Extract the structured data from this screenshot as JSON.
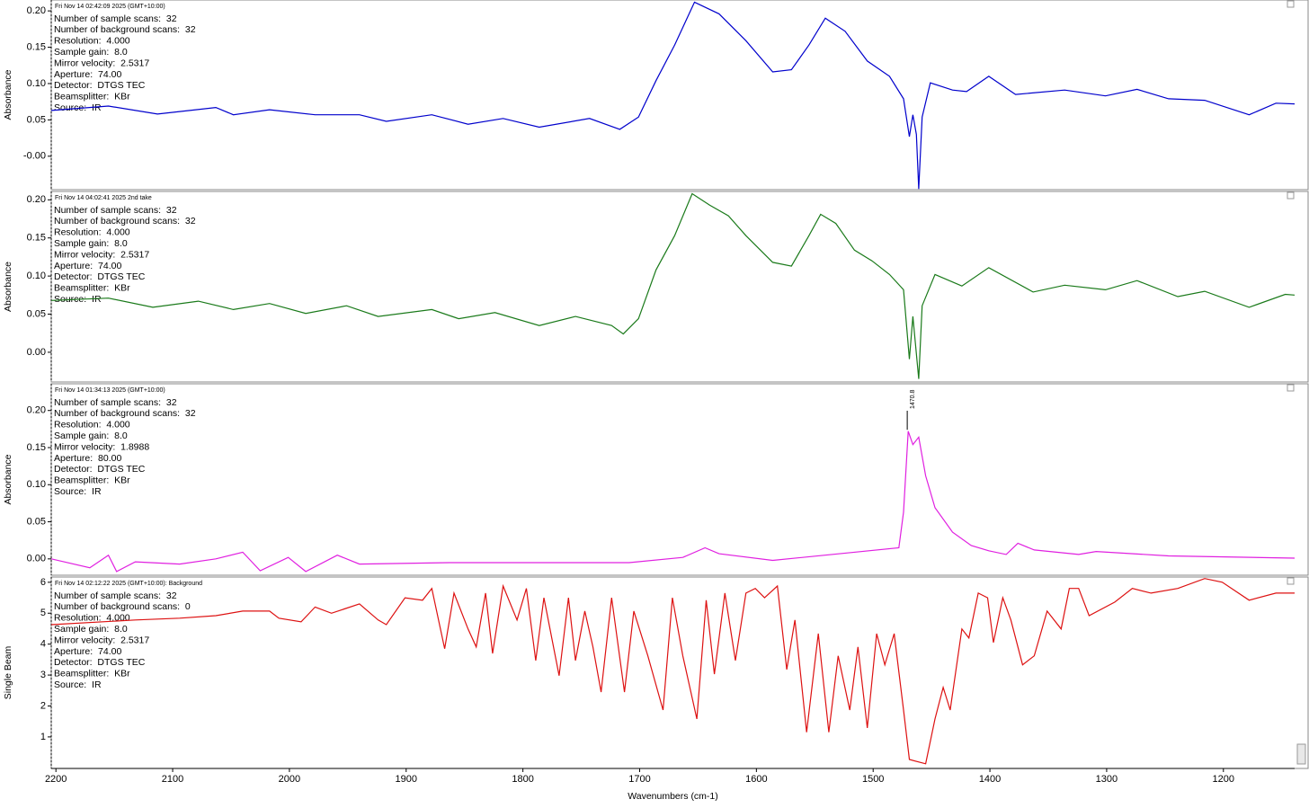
{
  "chart_data": [
    {
      "type": "line",
      "title": "Fri Nov 14 02:42:09 2025 (GMT+10:00)",
      "info": [
        "Number of sample scans:  32",
        "Number of background scans:  32",
        "Resolution:  4.000",
        "Sample gain:  8.0",
        "Mirror velocity:  2.5317",
        "Aperture:  74.00",
        "Detector:  DTGS TEC",
        "Beamsplitter:  KBr",
        "Source:  IR"
      ],
      "ylabel": "Absorbance",
      "color": "#0000cc",
      "xlim": [
        2204,
        1139
      ],
      "ylim": [
        -0.046,
        0.215
      ],
      "yticks": [
        {
          "value": 0.2,
          "label": "0.20"
        },
        0.15,
        {
          "value": 0.1,
          "label": "0.10"
        },
        0.05,
        {
          "value": 0,
          "label": "-0.00"
        }
      ],
      "x": [
        2204,
        2155,
        2113,
        2063,
        2048,
        2017,
        1978,
        1940,
        1917,
        1878,
        1847,
        1817,
        1786,
        1743,
        1717,
        1701,
        1686,
        1670,
        1653,
        1632,
        1609,
        1586,
        1570,
        1555,
        1541,
        1524,
        1505,
        1486,
        1474,
        1469,
        1466,
        1463,
        1461,
        1458,
        1451,
        1432,
        1420,
        1401,
        1378,
        1336,
        1301,
        1274,
        1247,
        1216,
        1178,
        1155,
        1139
      ],
      "values": [
        0.063,
        0.069,
        0.058,
        0.067,
        0.057,
        0.064,
        0.057,
        0.057,
        0.048,
        0.057,
        0.044,
        0.052,
        0.04,
        0.052,
        0.037,
        0.054,
        0.104,
        0.153,
        0.212,
        0.196,
        0.159,
        0.116,
        0.119,
        0.153,
        0.19,
        0.172,
        0.131,
        0.11,
        0.079,
        0.027,
        0.057,
        0.03,
        -0.045,
        0.054,
        0.101,
        0.091,
        0.089,
        0.11,
        0.085,
        0.091,
        0.083,
        0.092,
        0.079,
        0.077,
        0.057,
        0.073,
        0.072
      ]
    },
    {
      "type": "line",
      "title": "Fri Nov 14 04:02:41 2025 2nd take",
      "info": [
        "Number of sample scans:  32",
        "Number of background scans:  32",
        "Resolution:  4.000",
        "Sample gain:  8.0",
        "Mirror velocity:  2.5317",
        "Aperture:  74.00",
        "Detector:  DTGS TEC",
        "Beamsplitter:  KBr",
        "Source:  IR"
      ],
      "ylabel": "Absorbance",
      "color": "#1a7a1a",
      "xlim": [
        2204,
        1139
      ],
      "ylim": [
        -0.039,
        0.211
      ],
      "yticks": [
        {
          "value": 0.2,
          "label": "0.20"
        },
        0.15,
        {
          "value": 0.1,
          "label": "0.10"
        },
        0.05,
        {
          "value": 0,
          "label": "0.00"
        }
      ],
      "x": [
        2204,
        2155,
        2117,
        2078,
        2048,
        2017,
        1986,
        1951,
        1924,
        1878,
        1855,
        1824,
        1786,
        1755,
        1724,
        1714,
        1701,
        1686,
        1670,
        1655,
        1640,
        1624,
        1609,
        1586,
        1570,
        1555,
        1545,
        1532,
        1516,
        1501,
        1486,
        1474,
        1469,
        1466,
        1461,
        1458,
        1447,
        1424,
        1401,
        1363,
        1336,
        1301,
        1274,
        1239,
        1216,
        1178,
        1147,
        1139
      ],
      "values": [
        0.068,
        0.071,
        0.059,
        0.067,
        0.056,
        0.064,
        0.051,
        0.061,
        0.047,
        0.056,
        0.044,
        0.052,
        0.035,
        0.047,
        0.035,
        0.024,
        0.044,
        0.108,
        0.153,
        0.208,
        0.193,
        0.179,
        0.153,
        0.118,
        0.113,
        0.153,
        0.181,
        0.169,
        0.134,
        0.12,
        0.102,
        0.082,
        -0.009,
        0.047,
        -0.035,
        0.061,
        0.102,
        0.087,
        0.111,
        0.079,
        0.088,
        0.082,
        0.094,
        0.073,
        0.08,
        0.059,
        0.076,
        0.075
      ]
    },
    {
      "type": "line",
      "title": "Fri Nov 14 01:34:13 2025 (GMT+10:00)",
      "info": [
        "Number of sample scans:  32",
        "Number of background scans:  32",
        "Resolution:  4.000",
        "Sample gain:  8.0",
        "Mirror velocity:  1.8988",
        "Aperture:  80.00",
        "Detector:  DTGS TEC",
        "Beamsplitter:  KBr",
        "Source:  IR"
      ],
      "ylabel": "Absorbance",
      "color": "#e020e0",
      "xlim": [
        2204,
        1139
      ],
      "ylim": [
        -0.022,
        0.236
      ],
      "yticks": [
        {
          "value": 0.2,
          "label": "0.20"
        },
        0.15,
        {
          "value": 0.1,
          "label": "0.10"
        },
        0.05,
        {
          "value": 0,
          "label": "0.00"
        }
      ],
      "annotations": [
        {
          "x": 1470.8,
          "y": 0.174
        }
      ],
      "x": [
        2204,
        2171,
        2155,
        2148,
        2132,
        2094,
        2063,
        2040,
        2025,
        2001,
        1986,
        1959,
        1940,
        1863,
        1709,
        1663,
        1644,
        1632,
        1586,
        1478,
        1474,
        1470,
        1466,
        1461,
        1455,
        1447,
        1432,
        1416,
        1401,
        1386,
        1376,
        1362,
        1324,
        1309,
        1247,
        1139
      ],
      "values": [
        0.0,
        -0.012,
        0.005,
        -0.017,
        -0.004,
        -0.007,
        0.0,
        0.009,
        -0.016,
        0.002,
        -0.017,
        0.005,
        -0.007,
        -0.005,
        -0.005,
        0.002,
        0.015,
        0.007,
        -0.002,
        0.015,
        0.063,
        0.172,
        0.154,
        0.164,
        0.112,
        0.069,
        0.036,
        0.018,
        0.011,
        0.006,
        0.021,
        0.012,
        0.006,
        0.01,
        0.004,
        0.001
      ]
    },
    {
      "type": "line",
      "title": "Fri Nov 14 02:12:22 2025 (GMT+10:00): Background",
      "info": [
        "Number of sample scans:  32",
        "Number of background scans:  0",
        "Resolution:  4.000",
        "Sample gain:  8.0",
        "Mirror velocity:  2.5317",
        "Aperture:  74.00",
        "Detector:  DTGS TEC",
        "Beamsplitter:  KBr",
        "Source:  IR"
      ],
      "ylabel": "Single Beam",
      "color": "#dd1111",
      "xlim": [
        2204,
        1139
      ],
      "ylim": [
        -0.02,
        6.17
      ],
      "yticks": [
        1,
        2,
        3,
        4,
        5,
        6
      ],
      "xlabel": "Wavenumbers (cm-1)",
      "xticks": [
        2200,
        2100,
        2000,
        1900,
        1800,
        1700,
        1600,
        1500,
        1400,
        1300,
        1200
      ],
      "x": [
        2204,
        2132,
        2094,
        2063,
        2040,
        2017,
        2009,
        1990,
        1978,
        1964,
        1940,
        1924,
        1917,
        1901,
        1886,
        1878,
        1867,
        1859,
        1847,
        1840,
        1832,
        1826,
        1817,
        1805,
        1797,
        1789,
        1782,
        1769,
        1761,
        1755,
        1747,
        1740,
        1733,
        1724,
        1713,
        1705,
        1693,
        1680,
        1672,
        1663,
        1651,
        1643,
        1636,
        1627,
        1618,
        1609,
        1601,
        1593,
        1582,
        1574,
        1567,
        1557,
        1547,
        1538,
        1530,
        1520,
        1513,
        1505,
        1497,
        1490,
        1482,
        1474,
        1469,
        1455,
        1447,
        1440,
        1434,
        1424,
        1418,
        1410,
        1402,
        1397,
        1389,
        1382,
        1372,
        1362,
        1351,
        1339,
        1332,
        1324,
        1315,
        1293,
        1278,
        1262,
        1239,
        1216,
        1201,
        1178,
        1155,
        1139
      ],
      "values": [
        4.63,
        4.78,
        4.84,
        4.92,
        5.07,
        5.07,
        4.84,
        4.72,
        5.2,
        5.0,
        5.3,
        4.78,
        4.63,
        5.5,
        5.42,
        5.8,
        3.85,
        5.65,
        4.49,
        3.91,
        5.65,
        3.7,
        5.88,
        4.78,
        5.8,
        3.47,
        5.5,
        2.98,
        5.5,
        3.47,
        5.07,
        3.91,
        2.45,
        5.5,
        2.45,
        5.07,
        3.62,
        1.87,
        5.5,
        3.62,
        1.58,
        5.42,
        3.03,
        5.65,
        3.47,
        5.65,
        5.8,
        5.5,
        5.88,
        3.18,
        4.78,
        1.15,
        4.34,
        1.15,
        3.62,
        1.87,
        3.91,
        1.29,
        4.34,
        3.33,
        4.34,
        1.87,
        0.27,
        0.13,
        1.58,
        2.6,
        1.87,
        4.49,
        4.2,
        5.65,
        5.5,
        4.05,
        5.5,
        4.78,
        3.33,
        3.62,
        5.07,
        4.49,
        5.8,
        5.8,
        4.92,
        5.36,
        5.8,
        5.65,
        5.8,
        6.12,
        6.0,
        5.42,
        5.65,
        5.65
      ]
    }
  ]
}
